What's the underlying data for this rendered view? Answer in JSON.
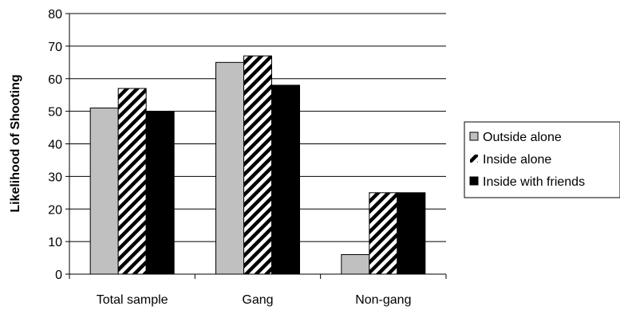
{
  "chart_data": {
    "type": "bar",
    "title": "",
    "xlabel": "",
    "ylabel": "Likelihood of Shooting",
    "ylim": [
      0,
      80
    ],
    "yticks": [
      0,
      10,
      20,
      30,
      40,
      50,
      60,
      70,
      80
    ],
    "grid": true,
    "legend_position": "right",
    "categories": [
      "Total sample",
      "Gang",
      "Non-gang"
    ],
    "series": [
      {
        "name": "Outside alone",
        "values": [
          51,
          65,
          6
        ],
        "fill": "#c0c0c0",
        "pattern": "solid"
      },
      {
        "name": "Inside alone",
        "values": [
          57,
          67,
          25
        ],
        "fill": "#ffffff",
        "pattern": "diagonal-stripes"
      },
      {
        "name": "Inside with friends",
        "values": [
          50,
          58,
          25
        ],
        "fill": "#000000",
        "pattern": "solid"
      }
    ]
  }
}
